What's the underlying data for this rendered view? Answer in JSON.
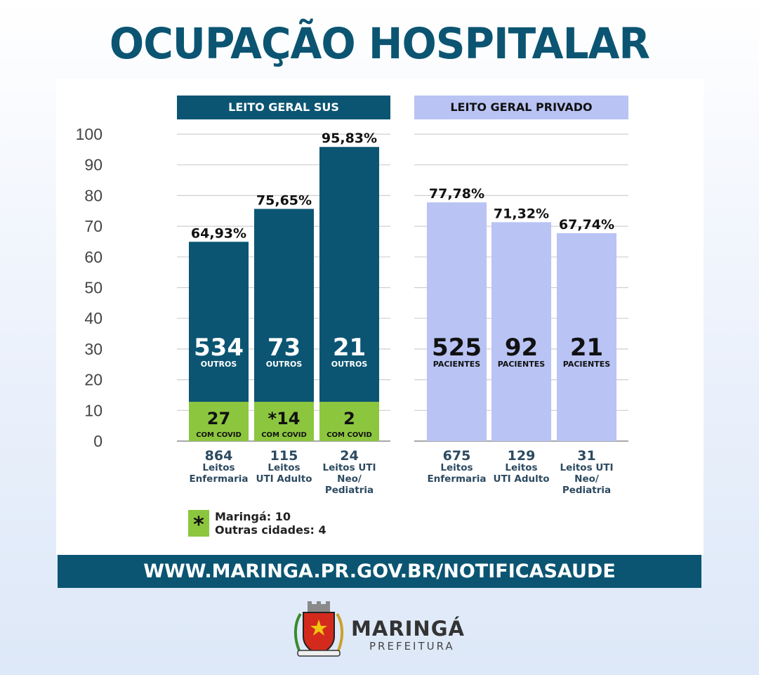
{
  "title": "OCUPAÇÃO HOSPITALAR",
  "chart_data": [
    {
      "type": "bar",
      "title": "LEITO GERAL SUS",
      "ylim": [
        0,
        100
      ],
      "yticks": [
        0,
        10,
        20,
        30,
        40,
        50,
        60,
        70,
        80,
        90,
        100
      ],
      "categories": [
        {
          "total": "864",
          "label": [
            "Leitos",
            "Enfermaria"
          ]
        },
        {
          "total": "115",
          "label": [
            "Leitos",
            "UTI Adulto"
          ]
        },
        {
          "total": "24",
          "label": [
            "Leitos UTI",
            "Neo/",
            "Pediatria"
          ]
        }
      ],
      "values": [
        64.93,
        75.65,
        95.83
      ],
      "value_labels": [
        "64,93%",
        "75,65%",
        "95,83%"
      ],
      "segments": [
        {
          "name": "OUTROS",
          "counts": [
            "534",
            "73",
            "21"
          ]
        },
        {
          "name": "COM COVID",
          "counts": [
            "27",
            "*14",
            "2"
          ]
        }
      ],
      "colors": {
        "main": "#0b5572",
        "covid": "#8cc63f"
      },
      "grid": true
    },
    {
      "type": "bar",
      "title": "LEITO GERAL PRIVADO",
      "ylim": [
        0,
        100
      ],
      "categories": [
        {
          "total": "675",
          "label": [
            "Leitos",
            "Enfermaria"
          ]
        },
        {
          "total": "129",
          "label": [
            "Leitos",
            "UTI Adulto"
          ]
        },
        {
          "total": "31",
          "label": [
            "Leitos UTI",
            "Neo/",
            "Pediatria"
          ]
        }
      ],
      "values": [
        77.78,
        71.32,
        67.74
      ],
      "value_labels": [
        "77,78%",
        "71,32%",
        "67,74%"
      ],
      "segments": [
        {
          "name": "PACIENTES",
          "counts": [
            "525",
            "92",
            "21"
          ]
        }
      ],
      "colors": {
        "main": "#b9c3f4"
      },
      "grid": true
    }
  ],
  "legend": {
    "symbol": "*",
    "lines": [
      "Maringá: 10",
      "Outras cidades: 4"
    ]
  },
  "url": "WWW.MARINGA.PR.GOV.BR/NOTIFICASAUDE",
  "logo": {
    "name": "MARINGÁ",
    "subtitle": "PREFEITURA"
  }
}
